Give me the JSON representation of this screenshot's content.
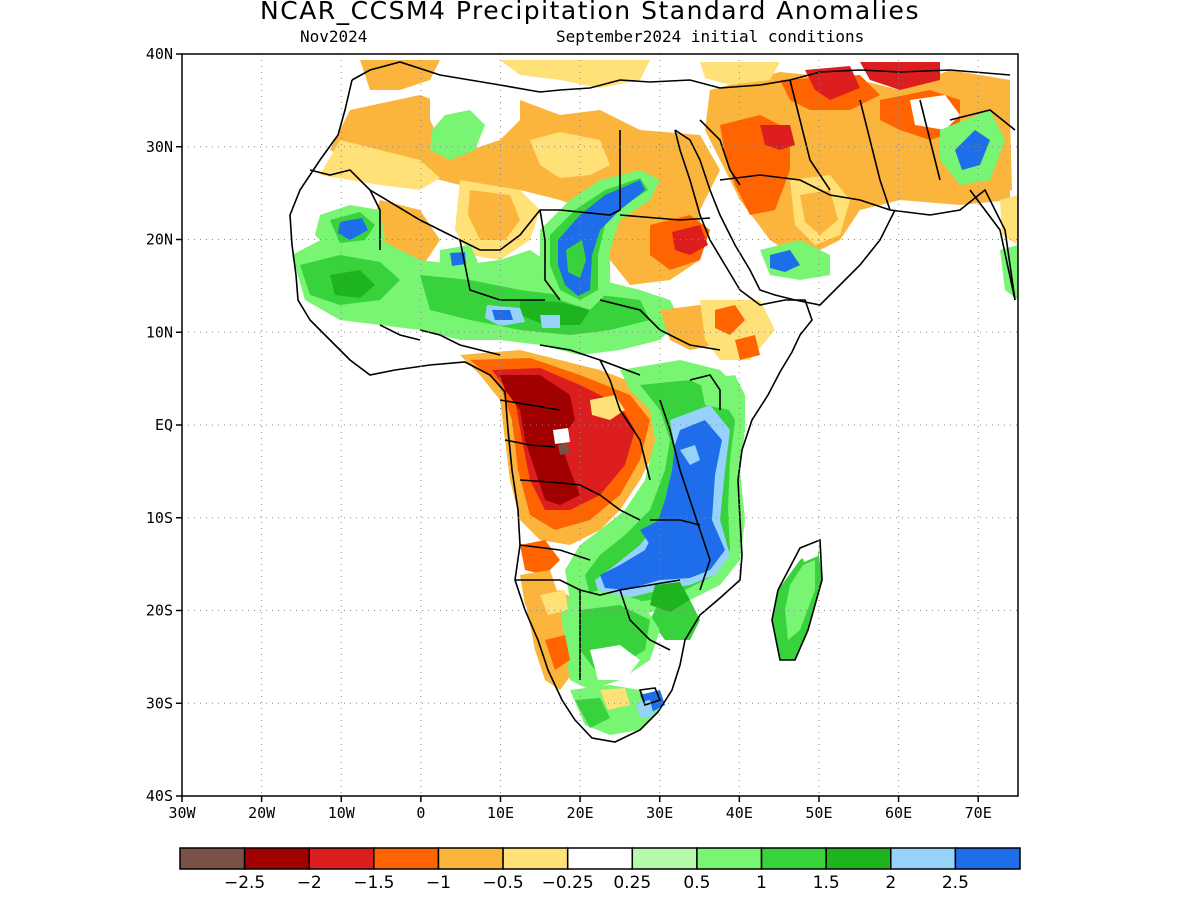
{
  "title": "NCAR_CCSM4 Precipitation Standard Anomalies",
  "subtitle_left": "Nov2024",
  "subtitle_right": "September2024 initial conditions",
  "y_axis": {
    "ticks": [
      {
        "label": "40N",
        "lat": 40
      },
      {
        "label": "30N",
        "lat": 30
      },
      {
        "label": "20N",
        "lat": 20
      },
      {
        "label": "10N",
        "lat": 10
      },
      {
        "label": "EQ",
        "lat": 0
      },
      {
        "label": "10S",
        "lat": -10
      },
      {
        "label": "20S",
        "lat": -20
      },
      {
        "label": "30S",
        "lat": -30
      },
      {
        "label": "40S",
        "lat": -40
      }
    ]
  },
  "x_axis": {
    "ticks": [
      {
        "label": "30W",
        "lon": -30
      },
      {
        "label": "20W",
        "lon": -20
      },
      {
        "label": "10W",
        "lon": -10
      },
      {
        "label": "0",
        "lon": 0
      },
      {
        "label": "10E",
        "lon": 10
      },
      {
        "label": "20E",
        "lon": 20
      },
      {
        "label": "30E",
        "lon": 30
      },
      {
        "label": "40E",
        "lon": 40
      },
      {
        "label": "50E",
        "lon": 50
      },
      {
        "label": "60E",
        "lon": 60
      },
      {
        "label": "70E",
        "lon": 70
      }
    ]
  },
  "map_extent": {
    "lon_min": -30,
    "lon_max": 75,
    "lat_min": -40,
    "lat_max": 40
  },
  "grid": "dotted",
  "colorbar": {
    "colors": [
      "#7a5147",
      "#a00000",
      "#dc1e1e",
      "#ff6400",
      "#fbb43c",
      "#ffe178",
      "#ffffff",
      "#b4faaa",
      "#78f573",
      "#37d23c",
      "#1eb41e",
      "#96d2fa",
      "#1e6eeb"
    ],
    "labels": [
      "−2.5",
      "−2",
      "−1.5",
      "−1",
      "−0.5",
      "−0.25",
      "0.25",
      "0.5",
      "1",
      "1.5",
      "2",
      "2.5"
    ]
  },
  "anomaly_regions": [
    {
      "region": "Angola / DR Congo",
      "category": "≤ −2"
    },
    {
      "region": "Chad / Sudan",
      "category": "≥ 2.5"
    },
    {
      "region": "Tanzania / Mozambique",
      "category": "≥ 2.5"
    },
    {
      "region": "Middle East",
      "category": "− 1 to − 2"
    },
    {
      "region": "Sahel / West Africa",
      "category": "1 to 2"
    }
  ]
}
